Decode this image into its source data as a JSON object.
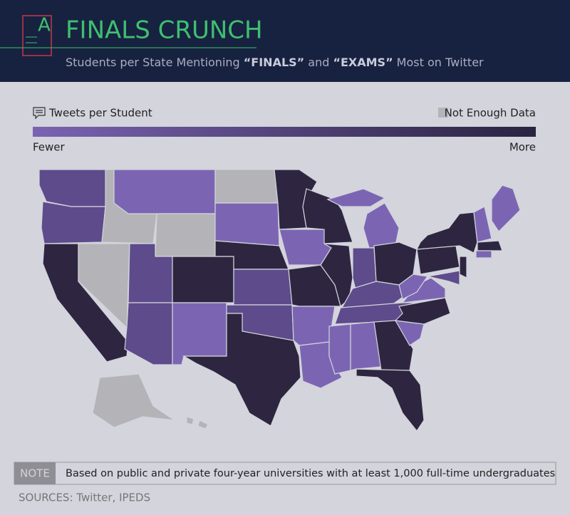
{
  "header": {
    "logo": "A",
    "title": "FINALS CRUNCH",
    "subtitle": [
      "Students per State Mentioning ",
      "“FINALS”",
      " and ",
      "“EXAMS”",
      " Most on Twitter"
    ]
  },
  "legend": {
    "title": "Tweets per Student",
    "no_data": "Not Enough Data",
    "low": "Fewer",
    "high": "More"
  },
  "note": {
    "label": "NOTE",
    "text": "Based on public and private four-year universities with at least 1,000 full-time undergraduates"
  },
  "sources": "SOURCES: Twitter, IPEDS"
}
